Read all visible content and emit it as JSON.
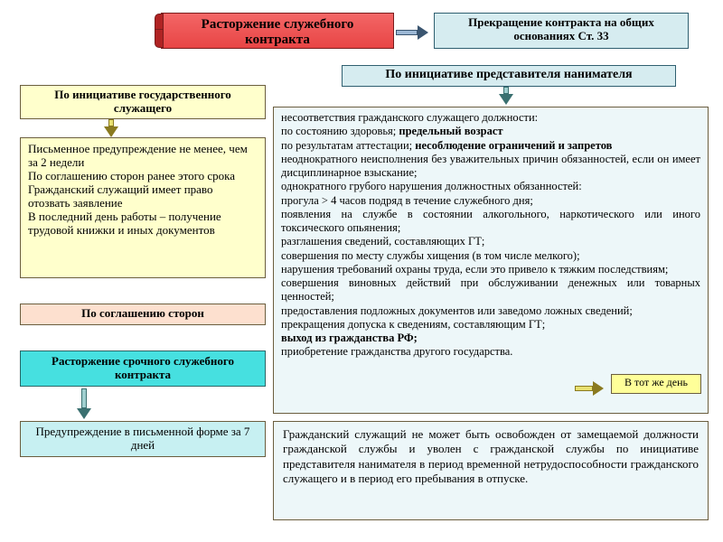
{
  "title": "Расторжение служебного контракта",
  "top_right": "Прекращение контракта на общих основаниях  Ст. 33",
  "employer_hdr": "По инициативе представителя нанимателя",
  "employee_hdr": "По инициативе государственного служащего",
  "employee_body": "Письменное предупреждение не менее, чем за 2 недели\nПо соглашению сторон ранее этого срока\nГражданский служащий имеет право отозвать заявление\nВ последний день работы – получение трудовой книжки и иных документов",
  "mutual": "По соглашению сторон",
  "urgent": "Расторжение срочного служебного контракта",
  "warn7": "Предупреждение в письменной форме за 7 дней",
  "same_day": "В тот же день",
  "big_lines": [
    {
      "t": "несоответствия гражданского служащего должности:"
    },
    {
      "t": "по состоянию здоровья;  ",
      "b": "предельный возраст"
    },
    {
      "t": "по результатам аттестации; ",
      "b": "несоблюдение ограничений и запретов"
    },
    {
      "t": "неоднократного неисполнения без уважительных причин обязанностей, если он имеет дисциплинарное взыскание;"
    },
    {
      "t": "однократного грубого нарушения должностных обязанностей:"
    },
    {
      "t": "прогула > 4 часов подряд в течение служебного дня;"
    },
    {
      "t": "появления на службе в состоянии алкогольного, наркотического или иного токсического опьянения;"
    },
    {
      "t": "разглашения сведений, составляющих ГТ;"
    },
    {
      "t": "совершения по месту службы хищения (в том числе мелкого);"
    },
    {
      "t": "нарушения требований охраны труда, если это привело к тяжким последствиям;"
    },
    {
      "t": "совершения виновных действий при обслуживании денежных или товарных ценностей;"
    },
    {
      "t": "предоставления подложных документов или заведомо ложных сведений;"
    },
    {
      "t": "прекращения допуска к сведениям, составляющим ГТ;"
    },
    {
      "b": "выход из гражданства РФ;"
    },
    {
      "t": "приобретение гражданства другого государства."
    }
  ],
  "bottom": "Гражданский служащий не может быть освобожден от замещаемой должности гражданской службы и уволен с гражданской службы по инициативе представителя нанимателя в период временной нетрудоспособности гражданского служащего и в период его пребывания в отпуске.",
  "colors": {
    "red": "#e84545",
    "blue": "#d6ecf0",
    "yellow": "#ffffcc",
    "peach": "#fde0cf",
    "cyan": "#46e0e0"
  }
}
